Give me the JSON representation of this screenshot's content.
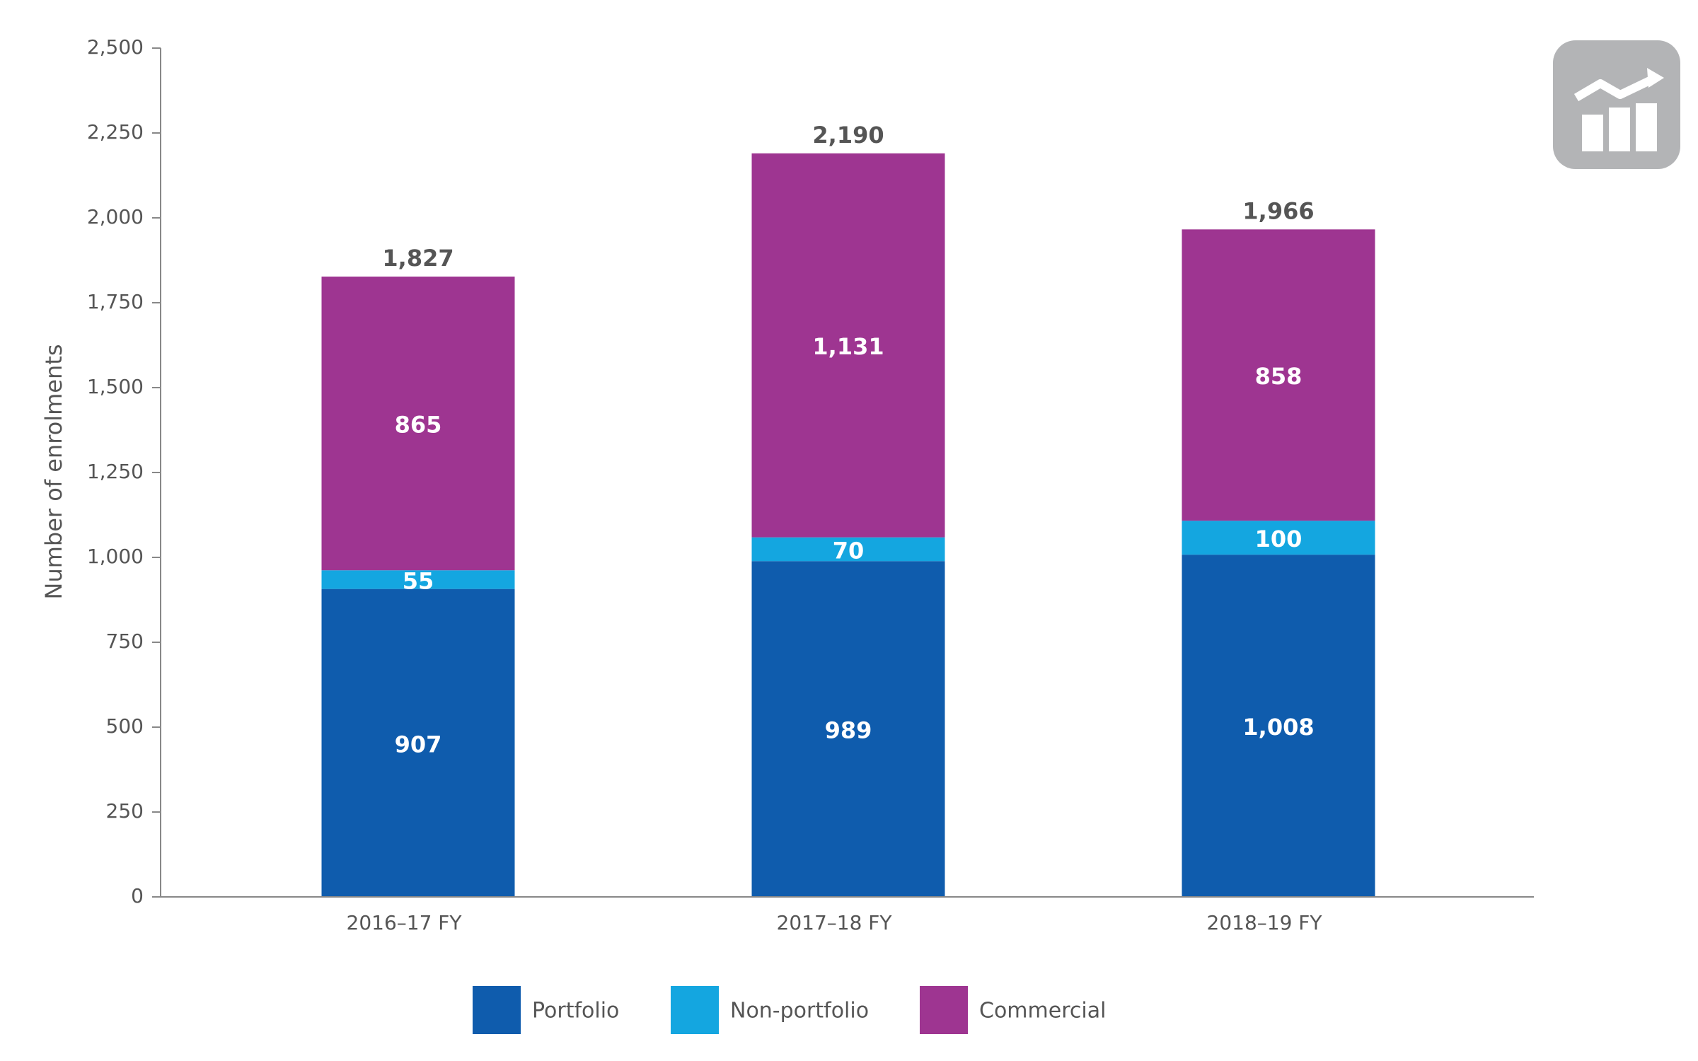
{
  "chart_data": {
    "type": "stacked_bar",
    "y_label": "Number of enrolments",
    "categories": [
      "2016–17 FY",
      "2017–18 FY",
      "2018–19 FY"
    ],
    "series": [
      {
        "name": "Portfolio",
        "color": "#0f5cad",
        "values": [
          907,
          989,
          1008
        ],
        "value_labels": [
          "907",
          "989",
          "1,008"
        ]
      },
      {
        "name": "Non-portfolio",
        "color": "#14a6e0",
        "values": [
          55,
          70,
          100
        ],
        "value_labels": [
          "55",
          "70",
          "100"
        ]
      },
      {
        "name": "Commercial",
        "color": "#9e3591",
        "values": [
          865,
          1131,
          858
        ],
        "value_labels": [
          "865",
          "1,131",
          "858"
        ]
      }
    ],
    "totals": {
      "values": [
        1827,
        2190,
        1966
      ],
      "value_labels": [
        "1,827",
        "2,190",
        "1,966"
      ]
    },
    "ylim": [
      0,
      2500
    ],
    "yticks": [
      0,
      250,
      500,
      750,
      {
        "value": 1000,
        "label": "1,000"
      },
      {
        "value": 1250,
        "label": "1,250"
      },
      {
        "value": 1500,
        "label": "1,500"
      },
      {
        "value": 1750,
        "label": "1,750"
      },
      {
        "value": 2000,
        "label": "2,000"
      },
      {
        "value": 2250,
        "label": "2,250"
      },
      {
        "value": 2500,
        "label": "2,500"
      }
    ],
    "legend": "bottom"
  }
}
